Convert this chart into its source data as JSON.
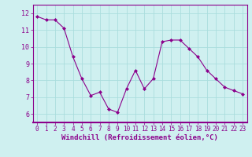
{
  "x": [
    0,
    1,
    2,
    3,
    4,
    5,
    6,
    7,
    8,
    9,
    10,
    11,
    12,
    13,
    14,
    15,
    16,
    17,
    18,
    19,
    20,
    21,
    22,
    23
  ],
  "y": [
    11.8,
    11.6,
    11.6,
    11.1,
    9.4,
    8.1,
    7.1,
    7.3,
    6.3,
    6.1,
    7.5,
    8.6,
    7.5,
    8.1,
    10.3,
    10.4,
    10.4,
    9.9,
    9.4,
    8.6,
    8.1,
    7.6,
    7.4,
    7.2
  ],
  "line_color": "#8B008B",
  "marker": "D",
  "marker_size": 2,
  "bg_color": "#cff0f0",
  "grid_color": "#aadddd",
  "xlabel": "Windchill (Refroidissement éolien,°C)",
  "xlabel_color": "#8B008B",
  "tick_color": "#8B008B",
  "spine_color": "#8B008B",
  "ylim": [
    5.5,
    12.5
  ],
  "xlim": [
    -0.5,
    23.5
  ],
  "yticks": [
    6,
    7,
    8,
    9,
    10,
    11,
    12
  ],
  "xticks": [
    0,
    1,
    2,
    3,
    4,
    5,
    6,
    7,
    8,
    9,
    10,
    11,
    12,
    13,
    14,
    15,
    16,
    17,
    18,
    19,
    20,
    21,
    22,
    23
  ],
  "tick_fontsize": 5.5,
  "xlabel_fontsize": 6.5,
  "linewidth": 0.8
}
